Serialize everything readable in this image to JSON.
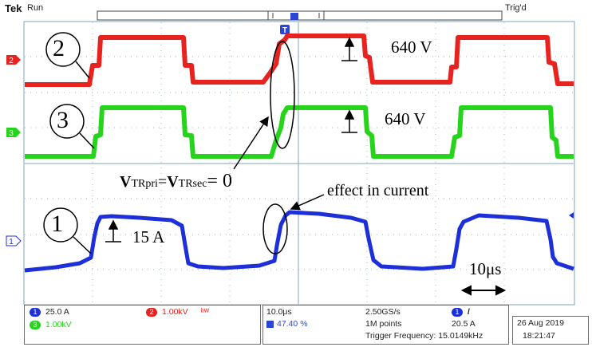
{
  "header": {
    "brand": "Tek",
    "run_state": "Run",
    "trigger_state": "Trig'd",
    "trigger_position_marker": "T"
  },
  "channels": [
    {
      "id": "2",
      "label": "2",
      "color": "#e8231f"
    },
    {
      "id": "3",
      "label": "3",
      "color": "#27d41c"
    },
    {
      "id": "1",
      "label": "1",
      "color": "#1c2fd8"
    }
  ],
  "annotations": {
    "trace_label_2": "2",
    "trace_label_3": "3",
    "trace_label_1": "1",
    "voltage_1": "640 V",
    "voltage_2": "640 V",
    "current": "15 A",
    "equation_v1": "V",
    "equation_sub1": "TRpri",
    "equation_eq": "=",
    "equation_v2": "V",
    "equation_sub2": "TRsec",
    "equation_rhs": "= 0",
    "effect_note": "effect in current",
    "time_scale": "10μs"
  },
  "status": {
    "ch1_scale": "25.0 A",
    "ch2_scale": "1.00kV",
    "ch3_scale": "1.00kV",
    "timebase": "10.0μs",
    "trigger_pos": "47.40 %",
    "sample_rate": "2.50GS/s",
    "record_length": "1M points",
    "trigger_source": "1",
    "trigger_slope": "/",
    "trigger_level": "20.5 A",
    "trigger_frequency": "Trigger Frequency: 15.0149kHz",
    "date": "26 Aug 2019",
    "time": "18:21:47"
  }
}
